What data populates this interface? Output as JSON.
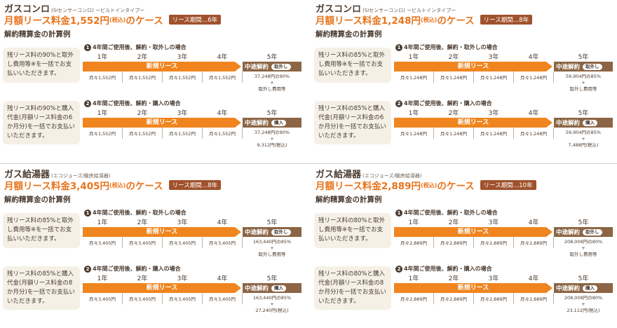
{
  "panels": [
    {
      "title": "ガスコンロ",
      "subtitle": "(Siセンサーコンロ) ービルトインタイプー",
      "price_prefix": "月額リース料金",
      "price": "1,552円",
      "tax": "(税込)",
      "price_suffix": "のケース",
      "period": "リース期間…6年",
      "calc_title": "解約精算金の計算例",
      "cases": [
        {
          "num": "1",
          "label": "4年間ご使用後、解約・取外しの場合",
          "desc": "残リース料の90%と取外し費用等※を一括でお支払いいただきます。",
          "years": [
            "1年",
            "2年",
            "3年",
            "4年",
            "5年"
          ],
          "bar": "新規リース",
          "mid": "中途解約",
          "tag": "取外し",
          "monthly": [
            "月々1,552円",
            "月々1,552円",
            "月々1,552円",
            "月々1,552円"
          ],
          "final1": "37,248円の90%",
          "plus": "+",
          "final2": "取外し費用等"
        },
        {
          "num": "2",
          "label": "4年間ご使用後、解約・購入の場合",
          "desc": "残リース料の90%と購入代金(月額リース料金の6か月分)を一括でお支払いいただきます。",
          "years": [
            "1年",
            "2年",
            "3年",
            "4年",
            "5年"
          ],
          "bar": "新規リース",
          "mid": "中途解約",
          "tag": "購入",
          "monthly": [
            "月々1,552円",
            "月々1,552円",
            "月々1,552円",
            "月々1,552円"
          ],
          "final1": "37,248円の90%",
          "plus": "+",
          "final2": "9,312円(税込)"
        }
      ]
    },
    {
      "title": "ガスコンロ",
      "subtitle": "(Siセンサーコンロ) ービルトインタイプー",
      "price_prefix": "月額リース料金",
      "price": "1,248円",
      "tax": "(税込)",
      "price_suffix": "のケース",
      "period": "リース期間…8年",
      "calc_title": "解約精算金の計算例",
      "cases": [
        {
          "num": "1",
          "label": "4年間ご使用後、解約・取外しの場合",
          "desc": "残リース料の85%と取外し費用等※を一括でお支払いいただきます。",
          "years": [
            "1年",
            "2年",
            "3年",
            "4年",
            "5年"
          ],
          "bar": "新規リース",
          "mid": "中途解約",
          "tag": "取外し",
          "monthly": [
            "月々1,248円",
            "月々1,248円",
            "月々1,248円",
            "月々1,248円"
          ],
          "final1": "59,904円の85%",
          "plus": "+",
          "final2": "取外し費用等"
        },
        {
          "num": "2",
          "label": "4年間ご使用後、解約・購入の場合",
          "desc": "残リース料の85%と購入代金(月額リース料金の6か月分)を一括でお支払いいただきます。",
          "years": [
            "1年",
            "2年",
            "3年",
            "4年",
            "5年"
          ],
          "bar": "新規リース",
          "mid": "中途解約",
          "tag": "購入",
          "monthly": [
            "月々1,248円",
            "月々1,248円",
            "月々1,248円",
            "月々1,248円"
          ],
          "final1": "59,904円の85%",
          "plus": "+",
          "final2": "7,488円(税込)"
        }
      ]
    },
    {
      "title": "ガス給湯器",
      "subtitle": "(エコジョーズ/暖房給湯器)",
      "price_prefix": "月額リース料金",
      "price": "3,405円",
      "tax": "(税込)",
      "price_suffix": "のケース",
      "period": "リース期間…8年",
      "calc_title": "解約精算金の計算例",
      "cases": [
        {
          "num": "1",
          "label": "4年間ご使用後、解約・取外しの場合",
          "desc": "残リース料の85%と取外し費用等※を一括でお支払いいただきます。",
          "years": [
            "1年",
            "2年",
            "3年",
            "4年",
            "5年"
          ],
          "bar": "新規リース",
          "mid": "中途解約",
          "tag": "取外し",
          "monthly": [
            "月々3,405円",
            "月々3,405円",
            "月々3,405円",
            "月々3,405円"
          ],
          "final1": "163,440円の85%",
          "plus": "+",
          "final2": "取外し費用等"
        },
        {
          "num": "2",
          "label": "4年間ご使用後、解約・購入の場合",
          "desc": "残リース料の85%と購入代金(月額リース料金の8か月分)を一括でお支払いいただきます。",
          "years": [
            "1年",
            "2年",
            "3年",
            "4年",
            "5年"
          ],
          "bar": "新規リース",
          "mid": "中途解約",
          "tag": "購入",
          "monthly": [
            "月々3,405円",
            "月々3,405円",
            "月々3,405円",
            "月々3,405円"
          ],
          "final1": "163,440円の85%",
          "plus": "+",
          "final2": "27,240円(税込)"
        }
      ]
    },
    {
      "title": "ガス給湯器",
      "subtitle": "(エコジョーズ/暖房給湯器)",
      "price_prefix": "月額リース料金",
      "price": "2,889円",
      "tax": "(税込)",
      "price_suffix": "のケース",
      "period": "リース期間…10年",
      "calc_title": "解約精算金の計算例",
      "cases": [
        {
          "num": "1",
          "label": "4年間ご使用後、解約・取外しの場合",
          "desc": "残リース料の80%と取外し費用等※を一括でお支払いいただきます。",
          "years": [
            "1年",
            "2年",
            "3年",
            "4年",
            "5年"
          ],
          "bar": "新規リース",
          "mid": "中途解約",
          "tag": "取外し",
          "monthly": [
            "月々2,889円",
            "月々2,889円",
            "月々2,889円",
            "月々2,889円"
          ],
          "final1": "208,008円の80%",
          "plus": "+",
          "final2": "取外し費用等"
        },
        {
          "num": "2",
          "label": "4年間ご使用後、解約・購入の場合",
          "desc": "残リース料の80%と購入代金(月額リース料金の8か月分)を一括でお支払いいただきます。",
          "years": [
            "1年",
            "2年",
            "3年",
            "4年",
            "5年"
          ],
          "bar": "新規リース",
          "mid": "中途解約",
          "tag": "購入",
          "monthly": [
            "月々2,889円",
            "月々2,889円",
            "月々2,889円",
            "月々2,889円"
          ],
          "final1": "208,008円の80%",
          "plus": "+",
          "final2": "23,112円(税込)"
        }
      ]
    }
  ]
}
